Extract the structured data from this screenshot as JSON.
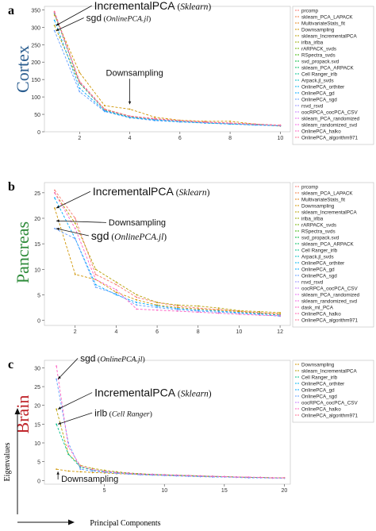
{
  "figure": {
    "y_axis_caption": "Eigenvalues",
    "x_axis_caption": "Principal Components"
  },
  "chart_data": [
    {
      "panel_letter": "a",
      "tissue": "Cortex",
      "tissue_color": "#2a5d8f",
      "type": "line",
      "xlim": [
        0.6,
        10.4
      ],
      "ylim": [
        0,
        360
      ],
      "x_ticks": [
        2,
        4,
        6,
        8,
        10
      ],
      "y_ticks": [
        0,
        50,
        100,
        150,
        200,
        250,
        300,
        350
      ],
      "annotations": [
        {
          "text": "IncrementalPCA",
          "italic": "Sklearn",
          "x": 1.0,
          "y": 305
        },
        {
          "text": "sgd",
          "italic": "OnlinePCA.jl",
          "x": 1.0,
          "y": 290
        },
        {
          "text": "Downsampling",
          "italic": "",
          "x": 4.0,
          "y": 70
        }
      ],
      "legend": [
        {
          "label": "prcomp",
          "color": "#f8766d"
        },
        {
          "label": "sklearn_PCA_LAPACK",
          "color": "#f07e44"
        },
        {
          "label": "MultivariateStats_fit",
          "color": "#e3861b"
        },
        {
          "label": "Downsampling",
          "color": "#cf9400"
        },
        {
          "label": "sklearn_IncrementalPCA",
          "color": "#b79f00"
        },
        {
          "label": "irlba_irlba",
          "color": "#9aa800"
        },
        {
          "label": "rARPACK_svds",
          "color": "#72b000"
        },
        {
          "label": "RSpectra_svds",
          "color": "#39b600"
        },
        {
          "label": "svd_propack.svd",
          "color": "#00ba38"
        },
        {
          "label": "sklearn_PCA_ARPACK",
          "color": "#00bd5c"
        },
        {
          "label": "Cell Ranger_irlb",
          "color": "#00c08b"
        },
        {
          "label": "Arpack.jl_svds",
          "color": "#00bfc4"
        },
        {
          "label": "OnlinePCA_orthiter",
          "color": "#00b4ef"
        },
        {
          "label": "OnlinePCA_gd",
          "color": "#00a9ff"
        },
        {
          "label": "OnlinePCA_sgd",
          "color": "#619cff"
        },
        {
          "label": "rsvd_rsvd",
          "color": "#9590ff"
        },
        {
          "label": "oocRPCA_oocPCA_CSV",
          "color": "#c77cff"
        },
        {
          "label": "sklearn_PCA_randomized",
          "color": "#e76bf3"
        },
        {
          "label": "sklearn_randomized_svd",
          "color": "#f564e3"
        },
        {
          "label": "OnlinePCA_halko",
          "color": "#ff61c3"
        },
        {
          "label": "OnlinePCA_algorithm971",
          "color": "#ff6c91"
        }
      ],
      "series": [
        {
          "name": "prcomp",
          "color": "#f8766d",
          "x": [
            1,
            2,
            3,
            4,
            5,
            6,
            7,
            8,
            9,
            10
          ],
          "values": [
            345,
            145,
            65,
            45,
            38,
            32,
            28,
            25,
            22,
            19
          ]
        },
        {
          "name": "Downsampling",
          "color": "#cf9400",
          "x": [
            1,
            2,
            3,
            4,
            5,
            6,
            7,
            8,
            9,
            10
          ],
          "values": [
            335,
            170,
            75,
            65,
            42,
            33,
            30,
            30,
            22,
            16
          ]
        },
        {
          "name": "sklearn_IncrementalPCA",
          "color": "#b79f00",
          "x": [
            1,
            2,
            3,
            4,
            5,
            6,
            7,
            8,
            9,
            10
          ],
          "values": [
            305,
            140,
            65,
            45,
            36,
            31,
            27,
            24,
            21,
            18
          ]
        },
        {
          "name": "svd_propack.svd",
          "color": "#00ba38",
          "x": [
            1,
            2,
            3,
            4,
            5,
            6,
            7,
            8,
            9,
            10
          ],
          "values": [
            340,
            140,
            62,
            42,
            35,
            30,
            26,
            23,
            20,
            18
          ]
        },
        {
          "name": "OnlinePCA_sgd",
          "color": "#619cff",
          "x": [
            1,
            2,
            3,
            4,
            5,
            6,
            7,
            8,
            9,
            10
          ],
          "values": [
            290,
            115,
            58,
            40,
            32,
            28,
            25,
            22,
            19,
            17
          ]
        },
        {
          "name": "OnlinePCA_gd",
          "color": "#00a9ff",
          "x": [
            1,
            2,
            3,
            4,
            5,
            6,
            7,
            8,
            9,
            10
          ],
          "values": [
            320,
            125,
            60,
            41,
            34,
            29,
            25,
            22,
            20,
            17
          ]
        },
        {
          "name": "dask_ml_PCA",
          "color": "#c77cff",
          "x": [
            1,
            2,
            3,
            4,
            5,
            6,
            7,
            8,
            9,
            10
          ],
          "values": [
            342,
            142,
            63,
            44,
            36,
            31,
            27,
            24,
            21,
            18
          ]
        },
        {
          "name": "OnlinePCA_algorithm971",
          "color": "#ff6c91",
          "x": [
            1,
            2,
            3,
            4,
            5,
            6,
            7,
            8,
            9,
            10
          ],
          "values": [
            344,
            144,
            64,
            45,
            37,
            32,
            28,
            25,
            22,
            19
          ]
        }
      ]
    },
    {
      "panel_letter": "b",
      "tissue": "Pancreas",
      "tissue_color": "#2e8b3a",
      "type": "line",
      "xlim": [
        0.5,
        12.5
      ],
      "ylim": [
        -1,
        27
      ],
      "x_ticks": [
        2,
        4,
        6,
        8,
        10,
        12
      ],
      "y_ticks": [
        0,
        5,
        10,
        15,
        20,
        25
      ],
      "annotations": [
        {
          "text": "IncrementalPCA",
          "italic": "Sklearn",
          "x": 1.0,
          "y": 22
        },
        {
          "text": "Downsampling",
          "italic": "",
          "x": 1.0,
          "y": 19.5
        },
        {
          "text": "sgd",
          "italic": "OnlinePCA.jl",
          "x": 1.0,
          "y": 18
        }
      ],
      "legend": [
        {
          "label": "prcomp",
          "color": "#f8766d"
        },
        {
          "label": "sklearn_PCA_LAPACK",
          "color": "#f07e44"
        },
        {
          "label": "MultivariateStats_fit",
          "color": "#e3861b"
        },
        {
          "label": "Downsampling",
          "color": "#cf9400"
        },
        {
          "label": "sklearn_IncrementalPCA",
          "color": "#b79f00"
        },
        {
          "label": "irlba_irlba",
          "color": "#9aa800"
        },
        {
          "label": "rARPACK_svds",
          "color": "#72b000"
        },
        {
          "label": "RSpectra_svds",
          "color": "#39b600"
        },
        {
          "label": "svd_propack.svd",
          "color": "#00ba38"
        },
        {
          "label": "sklearn_PCA_ARPACK",
          "color": "#00bd5c"
        },
        {
          "label": "Cell Ranger_irlb",
          "color": "#00c08b"
        },
        {
          "label": "Arpack.jl_svds",
          "color": "#00bfc4"
        },
        {
          "label": "OnlinePCA_orthiter",
          "color": "#00b4ef"
        },
        {
          "label": "OnlinePCA_gd",
          "color": "#00a9ff"
        },
        {
          "label": "OnlinePCA_sgd",
          "color": "#619cff"
        },
        {
          "label": "rsvd_rsvd",
          "color": "#9590ff"
        },
        {
          "label": "oocRPCA_oocPCA_CSV",
          "color": "#c77cff"
        },
        {
          "label": "sklearn_PCA_randomized",
          "color": "#e76bf3"
        },
        {
          "label": "sklearn_randomized_svd",
          "color": "#f564e3"
        },
        {
          "label": "dask_ml_PCA",
          "color": "#ff61c3"
        },
        {
          "label": "OnlinePCA_halko",
          "color": "#ff64b0"
        },
        {
          "label": "OnlinePCA_algorithm971",
          "color": "#ff6c91"
        }
      ],
      "series": [
        {
          "name": "prcomp",
          "color": "#f8766d",
          "x": [
            1,
            2,
            3,
            4,
            5,
            6,
            7,
            8,
            9,
            10,
            11,
            12
          ],
          "values": [
            25.5,
            20,
            9,
            7,
            4.5,
            3.5,
            2.8,
            2.4,
            2.1,
            1.8,
            1.5,
            1.3
          ]
        },
        {
          "name": "Downsampling",
          "color": "#cf9400",
          "x": [
            1,
            2,
            3,
            4,
            5,
            6,
            7,
            8,
            9,
            10,
            11,
            12
          ],
          "values": [
            22,
            9,
            8,
            5.5,
            4,
            3,
            2.5,
            2.2,
            2,
            1.7,
            1.4,
            1.2
          ]
        },
        {
          "name": "sklearn_IncrementalPCA",
          "color": "#b79f00",
          "x": [
            1,
            2,
            3,
            4,
            5,
            6,
            7,
            8,
            9,
            10,
            11,
            12
          ],
          "values": [
            25,
            19,
            10,
            7.5,
            5,
            3.5,
            3,
            2.8,
            2.4,
            1.9,
            1.7,
            1.5
          ]
        },
        {
          "name": "OnlinePCA_gd",
          "color": "#00a9ff",
          "x": [
            1,
            2,
            3,
            4,
            5,
            6,
            7,
            8,
            9,
            10,
            11,
            12
          ],
          "values": [
            24,
            16,
            7,
            5,
            3.5,
            2.8,
            2.3,
            2,
            1.8,
            1.5,
            1.3,
            1
          ]
        },
        {
          "name": "OnlinePCA_sgd",
          "color": "#619cff",
          "x": [
            1,
            2,
            3,
            4,
            5,
            6,
            7,
            8,
            9,
            10,
            11,
            12
          ],
          "values": [
            18,
            16,
            6.5,
            5.2,
            3,
            2.5,
            2.1,
            1.8,
            1.6,
            1.4,
            1.1,
            0.8
          ]
        },
        {
          "name": "dask_ml_PCA",
          "color": "#ff61c3",
          "x": [
            1,
            2,
            3,
            4,
            5,
            6,
            7,
            8,
            9,
            10,
            11,
            12
          ],
          "values": [
            25,
            18,
            8,
            6,
            2.2,
            2,
            1.8,
            1.6,
            1.4,
            1.2,
            1,
            0.9
          ]
        }
      ]
    },
    {
      "panel_letter": "c",
      "tissue": "Brain",
      "tissue_color": "#c0262c",
      "type": "line",
      "xlim": [
        0,
        20.5
      ],
      "ylim": [
        -1,
        32
      ],
      "x_ticks": [
        5,
        10,
        15,
        20
      ],
      "y_ticks": [
        0,
        5,
        10,
        15,
        20,
        25,
        30
      ],
      "annotations": [
        {
          "text": "sgd",
          "italic": "OnlinePCA.jl",
          "x": 1.0,
          "y": 27
        },
        {
          "text": "IncrementalPCA",
          "italic": "Sklearn",
          "x": 1.0,
          "y": 19
        },
        {
          "text": "irlb",
          "italic": "Cell Ranger",
          "x": 1.0,
          "y": 15
        },
        {
          "text": "Downsampling",
          "italic": "",
          "x": 1.0,
          "y": 3
        }
      ],
      "legend": [
        {
          "label": "Downsampling",
          "color": "#cf9400"
        },
        {
          "label": "sklearn_IncrementalPCA",
          "color": "#b79f00"
        },
        {
          "label": "Cell Ranger_irlb",
          "color": "#00c08b"
        },
        {
          "label": "OnlinePCA_orthiter",
          "color": "#00b4ef"
        },
        {
          "label": "OnlinePCA_gd",
          "color": "#00a9ff"
        },
        {
          "label": "OnlinePCA_sgd",
          "color": "#619cff"
        },
        {
          "label": "oocRPCA_oocPCA_CSV",
          "color": "#c77cff"
        },
        {
          "label": "OnlinePCA_halko",
          "color": "#ff61c3"
        },
        {
          "label": "OnlinePCA_algorithm971",
          "color": "#ff6c91"
        }
      ],
      "series": [
        {
          "name": "Downsampling",
          "color": "#cf9400",
          "x": [
            1,
            2,
            3,
            4,
            5,
            6,
            7,
            8,
            9,
            10,
            11,
            12,
            13,
            14,
            15,
            16,
            17,
            18,
            19,
            20
          ],
          "values": [
            3,
            2.5,
            2.3,
            2.1,
            2,
            1.8,
            1.7,
            1.6,
            1.5,
            1.4,
            1.3,
            1.2,
            1.1,
            1,
            1,
            0.9,
            0.8,
            0.8,
            0.7,
            0.7
          ]
        },
        {
          "name": "sklearn_IncrementalPCA",
          "color": "#b79f00",
          "x": [
            1,
            2,
            3,
            4,
            5,
            6,
            7,
            8,
            9,
            10,
            11,
            12,
            13,
            14,
            15,
            16,
            17,
            18,
            19,
            20
          ],
          "values": [
            19,
            7,
            4,
            3.2,
            2.7,
            2.3,
            2,
            1.8,
            1.6,
            1.5,
            1.4,
            1.3,
            1.2,
            1.1,
            1,
            0.9,
            0.8,
            0.8,
            0.7,
            0.7
          ]
        },
        {
          "name": "Cell Ranger_irlb",
          "color": "#00c08b",
          "x": [
            1,
            2,
            3,
            4,
            5,
            6,
            7,
            8,
            9,
            10,
            11,
            12,
            13,
            14,
            15,
            16,
            17,
            18,
            19,
            20
          ],
          "values": [
            15,
            7,
            3.5,
            2.8,
            2.4,
            2.1,
            1.9,
            1.7,
            1.6,
            1.5,
            1.4,
            1.3,
            1.2,
            1.1,
            1,
            0.9,
            0.8,
            0.8,
            0.7,
            0.6
          ]
        },
        {
          "name": "OnlinePCA_sgd",
          "color": "#619cff",
          "x": [
            1,
            2,
            3,
            4,
            5,
            6,
            7,
            8,
            9,
            10,
            11,
            12,
            13,
            14,
            15,
            16,
            17,
            18,
            19,
            20
          ],
          "values": [
            27,
            10,
            3,
            2.5,
            2.2,
            1.9,
            1.7,
            1.5,
            1.4,
            1.3,
            1.2,
            1.1,
            1,
            0.9,
            0.9,
            0.8,
            0.7,
            0.7,
            0.6,
            0.6
          ]
        },
        {
          "name": "OnlinePCA_halko",
          "color": "#ff61c3",
          "x": [
            1,
            2,
            3,
            4,
            5,
            6,
            7,
            8,
            9,
            10,
            11,
            12,
            13,
            14,
            15,
            16,
            17,
            18,
            19,
            20
          ],
          "values": [
            30.5,
            9,
            3.8,
            2.9,
            2.4,
            2.1,
            1.9,
            1.7,
            1.6,
            1.5,
            1.4,
            1.3,
            1.2,
            1.1,
            1,
            0.9,
            0.9,
            0.8,
            0.7,
            0.7
          ]
        }
      ]
    }
  ]
}
